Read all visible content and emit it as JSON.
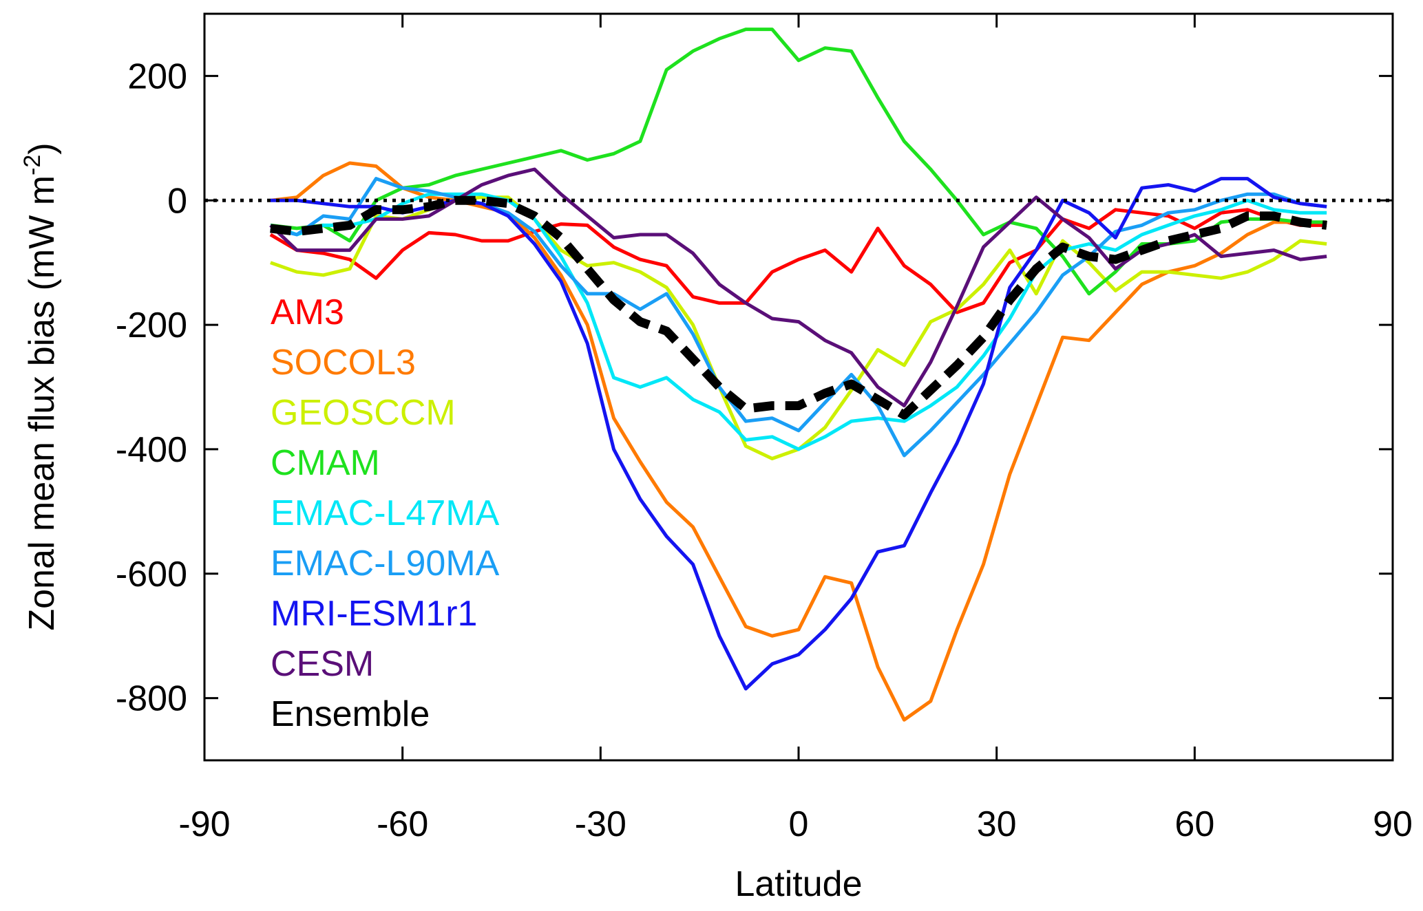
{
  "chart_data": {
    "type": "line",
    "title": "",
    "xlabel": "Latitude",
    "ylabel": "Zonal mean flux bias (mW m",
    "ylabel_superscript": "-2",
    "ylabel_close": ")",
    "xlim": [
      -90,
      90
    ],
    "ylim": [
      -900,
      300
    ],
    "xticks": [
      -90,
      -60,
      -30,
      0,
      30,
      60,
      90
    ],
    "yticks": [
      200,
      0,
      -200,
      -400,
      -600,
      -800
    ],
    "xtick_labels": [
      "-90",
      "-60",
      "-30",
      "0",
      "30",
      "60",
      "90"
    ],
    "ytick_labels": [
      "200",
      "0",
      "-200",
      "-400",
      "-600",
      "-800"
    ],
    "grid": false,
    "zero_reference_line": true,
    "legend_position": "left",
    "x": [
      -80,
      -76,
      -72,
      -68,
      -64,
      -60,
      -56,
      -52,
      -48,
      -44,
      -40,
      -36,
      -32,
      -28,
      -24,
      -20,
      -16,
      -12,
      -8,
      -4,
      0,
      4,
      8,
      12,
      16,
      20,
      24,
      28,
      32,
      36,
      40,
      44,
      48,
      52,
      56,
      60,
      64,
      68,
      72,
      76,
      80
    ],
    "series": [
      {
        "name": "AM3",
        "color": "#ff0000",
        "dashed": false,
        "values": [
          -55,
          -80,
          -85,
          -95,
          -125,
          -80,
          -52,
          -55,
          -65,
          -65,
          -50,
          -38,
          -40,
          -75,
          -95,
          -105,
          -155,
          -165,
          -165,
          -115,
          -95,
          -80,
          -115,
          -45,
          -105,
          -135,
          -180,
          -165,
          -100,
          -80,
          -30,
          -45,
          -15,
          -20,
          -25,
          -45,
          -20,
          -15,
          -30,
          -40,
          -40
        ]
      },
      {
        "name": "SOCOL3",
        "color": "#ff7a00",
        "dashed": false,
        "values": [
          0,
          5,
          40,
          60,
          55,
          20,
          5,
          0,
          -10,
          -20,
          -60,
          -120,
          -200,
          -350,
          -420,
          -485,
          -525,
          -605,
          -685,
          -700,
          -690,
          -605,
          -615,
          -750,
          -835,
          -805,
          -690,
          -585,
          -440,
          -330,
          -220,
          -225,
          -180,
          -135,
          -115,
          -105,
          -85,
          -55,
          -35,
          -35,
          -35
        ]
      },
      {
        "name": "GEOSCCM",
        "color": "#ccf000",
        "dashed": false,
        "values": [
          -100,
          -115,
          -120,
          -110,
          -25,
          -30,
          -15,
          0,
          5,
          5,
          -30,
          -80,
          -105,
          -100,
          -115,
          -140,
          -200,
          -300,
          -395,
          -415,
          -400,
          -365,
          -305,
          -240,
          -265,
          -195,
          -175,
          -135,
          -80,
          -150,
          -65,
          -100,
          -145,
          -115,
          -115,
          -120,
          -125,
          -115,
          -95,
          -65,
          -70
        ]
      },
      {
        "name": "CMAM",
        "color": "#1ee11e",
        "dashed": false,
        "values": [
          -40,
          -45,
          -40,
          -65,
          0,
          20,
          25,
          40,
          50,
          60,
          70,
          80,
          65,
          75,
          95,
          210,
          240,
          260,
          275,
          275,
          225,
          245,
          240,
          165,
          95,
          50,
          0,
          -55,
          -35,
          -45,
          -90,
          -150,
          -115,
          -70,
          -70,
          -65,
          -35,
          -30,
          -30,
          -35,
          -35
        ]
      },
      {
        "name": "EMAC-L47MA",
        "color": "#00e7f7",
        "dashed": false,
        "values": [
          -40,
          -55,
          -40,
          -40,
          -30,
          -5,
          10,
          10,
          10,
          0,
          -30,
          -90,
          -165,
          -285,
          -300,
          -285,
          -320,
          -340,
          -385,
          -380,
          -400,
          -380,
          -355,
          -350,
          -355,
          -330,
          -300,
          -250,
          -190,
          -115,
          -80,
          -70,
          -80,
          -55,
          -40,
          -25,
          -15,
          0,
          -15,
          -20,
          -20
        ]
      },
      {
        "name": "EMAC-L90MA",
        "color": "#1a9ef5",
        "dashed": false,
        "values": [
          -45,
          -55,
          -25,
          -30,
          35,
          20,
          15,
          5,
          -5,
          -20,
          -50,
          -105,
          -150,
          -150,
          -175,
          -150,
          -215,
          -300,
          -355,
          -350,
          -370,
          -325,
          -280,
          -330,
          -410,
          -370,
          -325,
          -280,
          -230,
          -180,
          -120,
          -90,
          -50,
          -40,
          -20,
          -15,
          0,
          10,
          10,
          -5,
          -10
        ]
      },
      {
        "name": "MRI-ESM1r1",
        "color": "#1414f0",
        "dashed": false,
        "values": [
          0,
          0,
          -5,
          -10,
          -10,
          -20,
          -10,
          0,
          -5,
          -25,
          -70,
          -130,
          -230,
          -400,
          -480,
          -540,
          -585,
          -700,
          -785,
          -745,
          -730,
          -690,
          -640,
          -565,
          -555,
          -470,
          -390,
          -295,
          -140,
          -80,
          0,
          -20,
          -60,
          20,
          25,
          15,
          35,
          35,
          5,
          -5,
          -10
        ]
      },
      {
        "name": "CESM",
        "color": "#5a0f78",
        "dashed": false,
        "values": [
          -40,
          -80,
          -80,
          -80,
          -30,
          -30,
          -25,
          0,
          25,
          40,
          50,
          10,
          -25,
          -60,
          -55,
          -55,
          -85,
          -135,
          -165,
          -190,
          -195,
          -225,
          -245,
          -300,
          -330,
          -260,
          -170,
          -75,
          -35,
          5,
          -30,
          -60,
          -110,
          -80,
          -70,
          -55,
          -90,
          -85,
          -80,
          -95,
          -90
        ]
      },
      {
        "name": "Ensemble",
        "color": "#000000",
        "dashed": true,
        "values": [
          -45,
          -50,
          -45,
          -40,
          -15,
          -15,
          -10,
          0,
          0,
          -5,
          -25,
          -60,
          -110,
          -160,
          -195,
          -210,
          -255,
          -300,
          -335,
          -330,
          -330,
          -310,
          -295,
          -320,
          -345,
          -305,
          -265,
          -220,
          -160,
          -110,
          -75,
          -90,
          -95,
          -80,
          -65,
          -55,
          -45,
          -25,
          -25,
          -35,
          -40
        ]
      }
    ]
  }
}
